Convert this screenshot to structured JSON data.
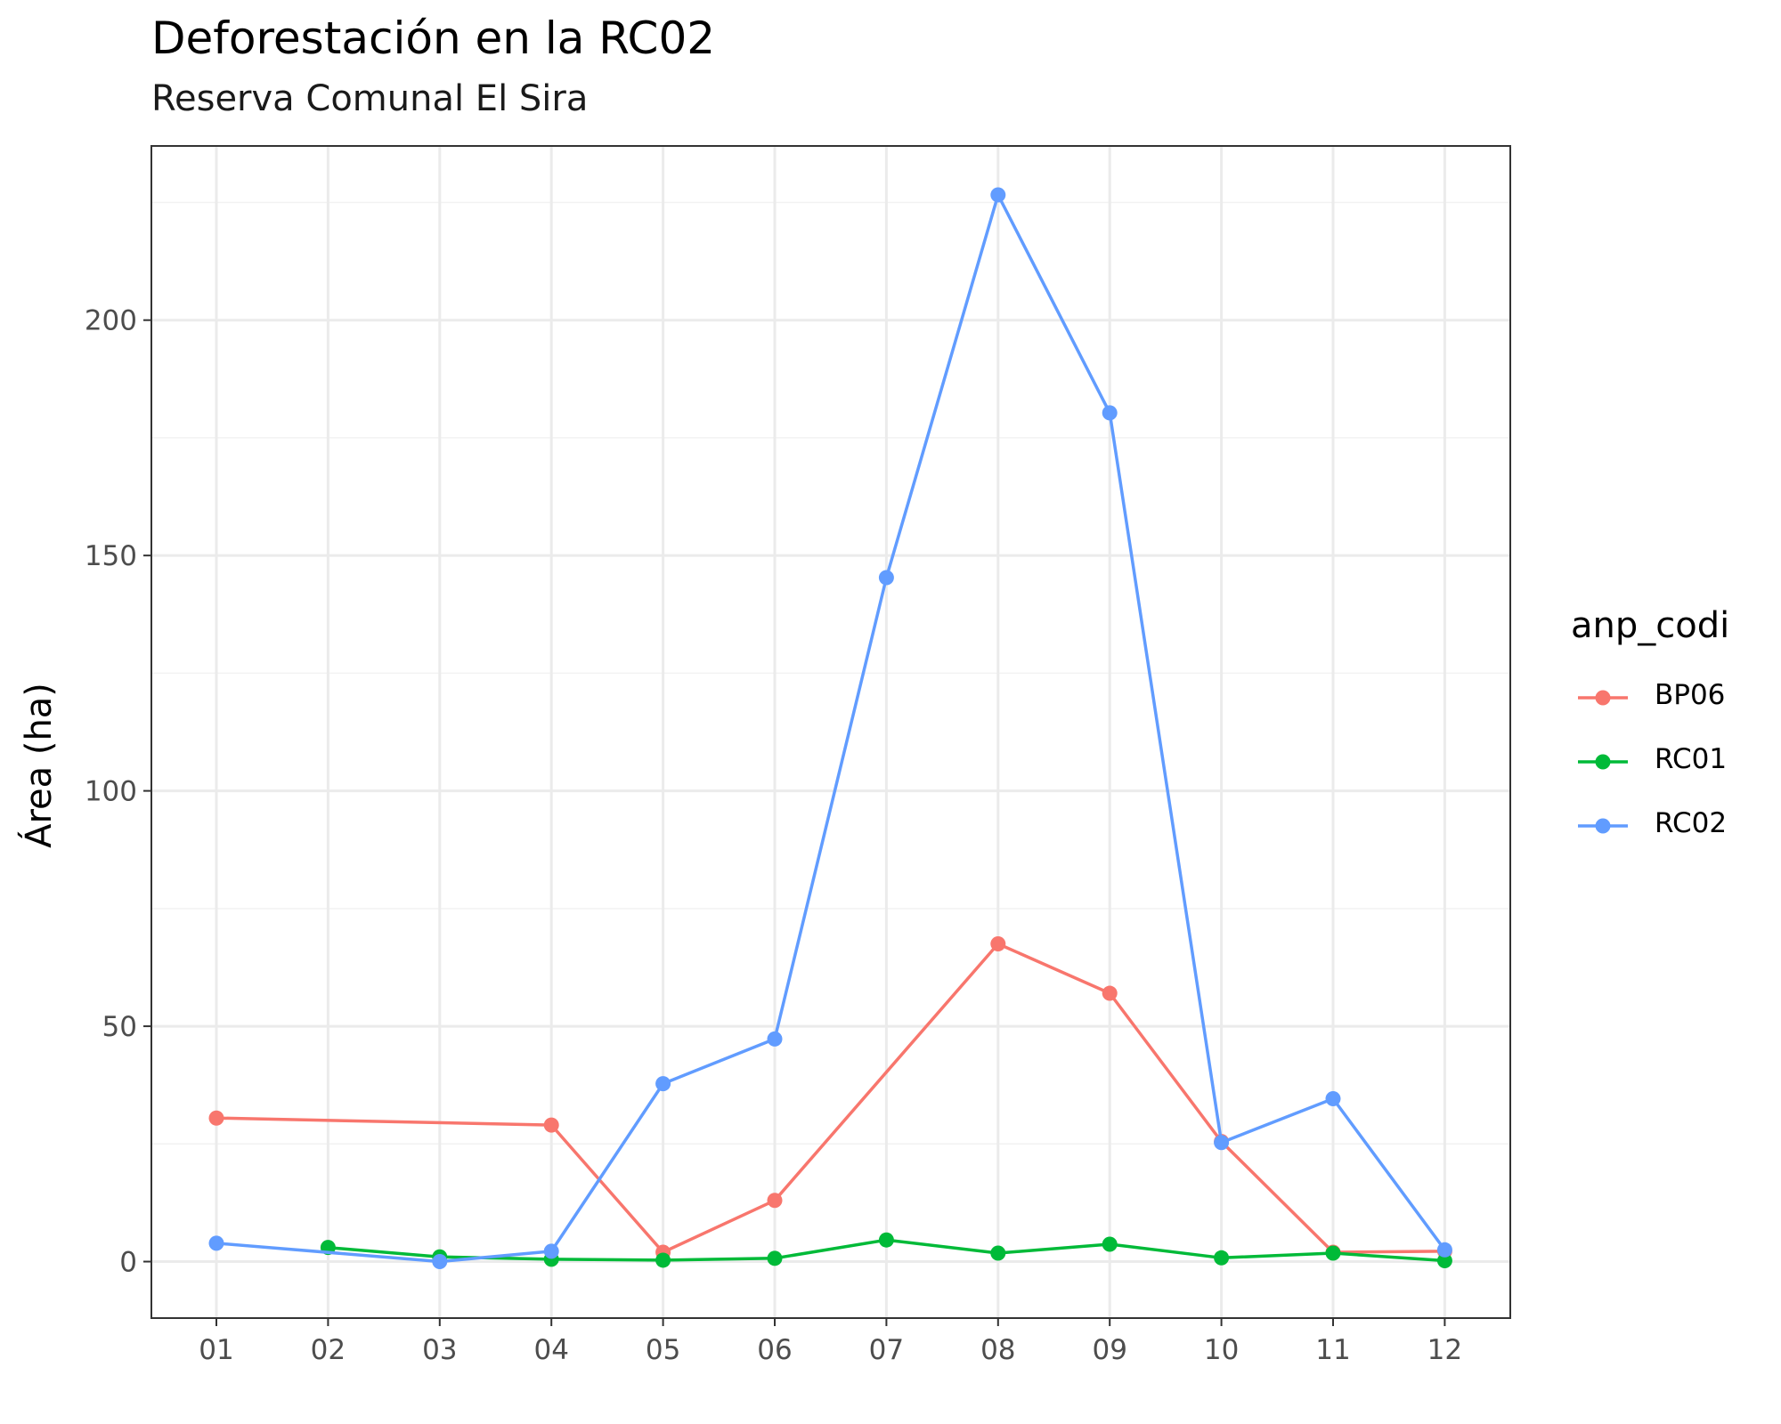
{
  "chart_data": {
    "type": "line",
    "title": "Deforestación en la RC02",
    "subtitle": "Reserva Comunal El Sira",
    "xlabel": "",
    "ylabel": "Área (ha)",
    "categories": [
      "01",
      "02",
      "03",
      "04",
      "05",
      "06",
      "07",
      "08",
      "09",
      "10",
      "11",
      "12"
    ],
    "ylim": [
      -12,
      237
    ],
    "yticks": [
      0,
      50,
      100,
      150,
      200
    ],
    "grid": true,
    "legend": {
      "title": "anp_codi",
      "placement": "right"
    },
    "series": [
      {
        "name": "BP06",
        "color": "#F8766D",
        "values": [
          30.5,
          null,
          null,
          29.0,
          2.0,
          13.0,
          null,
          67.5,
          57.0,
          25.5,
          2.0,
          2.2
        ]
      },
      {
        "name": "RC01",
        "color": "#00BA38",
        "values": [
          null,
          3.0,
          1.0,
          0.5,
          0.3,
          0.7,
          4.6,
          1.8,
          3.7,
          0.8,
          1.8,
          0.2
        ]
      },
      {
        "name": "RC02",
        "color": "#619CFF",
        "values": [
          3.9,
          null,
          0.0,
          2.2,
          37.8,
          47.3,
          145.3,
          226.6,
          180.3,
          25.3,
          34.6,
          2.5
        ]
      }
    ]
  }
}
